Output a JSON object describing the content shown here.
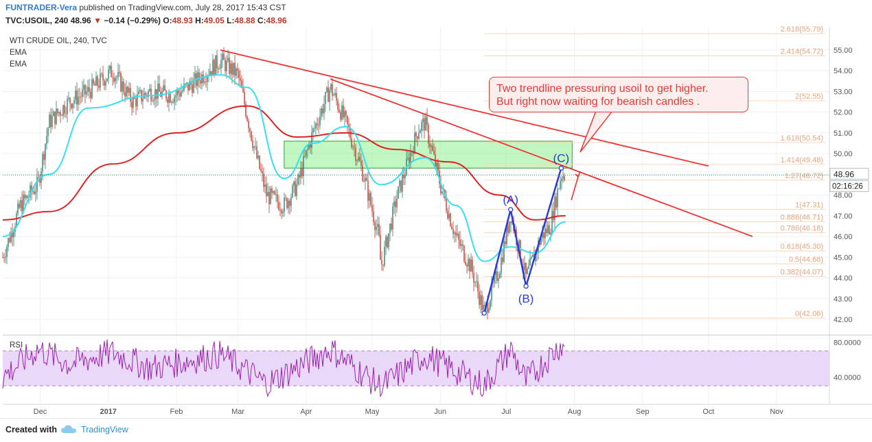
{
  "header": {
    "author": "FUNTRADER-Vera",
    "published": "published on TradingView.com, July 28, 2017 15:43 CST",
    "symbol": "TVC:USOIL, 240",
    "last": "48.96",
    "change": "−0.14 (−0.29%)",
    "o_label": "O:",
    "o_value": "48.93",
    "h_label": "H:",
    "h_value": "49.05",
    "l_label": "L:",
    "l_value": "48.88",
    "c_label": "C:",
    "c_value": "48.96"
  },
  "indicators": {
    "title": "WTI CRUDE OIL, 240, TVC",
    "ema1": "EMA",
    "ema2": "EMA",
    "rsi": "RSI"
  },
  "annotation": {
    "line1": "Two trendline pressuring usoil to get higher.",
    "line2": "But right now waiting for  bearish candles ."
  },
  "footer": {
    "created": "Created with",
    "brand": "TradingView"
  },
  "colors": {
    "up": "#2e7d6b",
    "down": "#c0392b",
    "ema_fast": "#33e0f0",
    "ema_slow": "#e02020",
    "trendline": "#f03030",
    "pattern": "#2a3cd8",
    "zone": "#90ee90",
    "rsi": "#9b1fb0",
    "rsi_band": "#ead8f8"
  },
  "chart_data": {
    "type": "candlestick",
    "price_axis": {
      "ticks": [
        "42.00",
        "43.00",
        "44.00",
        "45.00",
        "46.00",
        "47.00",
        "48.00",
        "49.00",
        "50.00",
        "51.00",
        "52.00",
        "53.00",
        "54.00",
        "55.00"
      ]
    },
    "time_axis": {
      "ticks": [
        "Dec",
        "2017",
        "Feb",
        "Mar",
        "Apr",
        "May",
        "Jun",
        "Jul",
        "Aug",
        "Sep",
        "Oct",
        "Nov"
      ]
    },
    "last_price": "48.96",
    "countdown": "02:16:26",
    "fib_levels": [
      {
        "label": "2.618(55.79)",
        "value": 55.79
      },
      {
        "label": "2.414(54.72)",
        "value": 54.72
      },
      {
        "label": "2(52.55)",
        "value": 52.55
      },
      {
        "label": "1.618(50.54)",
        "value": 50.54
      },
      {
        "label": "1.414(49.48)",
        "value": 49.48
      },
      {
        "label": "1.27(48.72)",
        "value": 48.72
      },
      {
        "label": "1(47.31)",
        "value": 47.31
      },
      {
        "label": "0.886(46.71)",
        "value": 46.71
      },
      {
        "label": "0.786(46.18)",
        "value": 46.18
      },
      {
        "label": "0.618(45.30)",
        "value": 45.3
      },
      {
        "label": "0.5(44.68)",
        "value": 44.68
      },
      {
        "label": "0.382(44.07)",
        "value": 44.07
      },
      {
        "label": "0(42.06)",
        "value": 42.06
      }
    ],
    "resistance_zone": {
      "from": "2017-03-22",
      "to": "2017-07-31",
      "low": 49.3,
      "high": 50.6
    },
    "trendlines": [
      {
        "name": "upper",
        "from": {
          "t": "2017-02-21",
          "p": 55.0
        },
        "to": {
          "t": "2017-10-01",
          "p": 49.4
        }
      },
      {
        "name": "lower",
        "from": {
          "t": "2017-04-12",
          "p": 53.6
        },
        "to": {
          "t": "2017-10-21",
          "p": 46.0
        }
      }
    ],
    "pattern": {
      "points": [
        {
          "label": "",
          "t": "2017-06-21",
          "p": 42.3
        },
        {
          "label": "(A)",
          "t": "2017-07-03",
          "p": 47.3
        },
        {
          "label": "(B)",
          "t": "2017-07-10",
          "p": 43.6
        },
        {
          "label": "(C)",
          "t": "2017-07-26",
          "p": 49.3
        }
      ]
    },
    "candles_overview": [
      {
        "t": "2016-11-14",
        "p": 45.0
      },
      {
        "t": "2016-11-22",
        "p": 47.5
      },
      {
        "t": "2016-11-30",
        "p": 48.5
      },
      {
        "t": "2016-12-05",
        "p": 51.5
      },
      {
        "t": "2016-12-14",
        "p": 52.5
      },
      {
        "t": "2016-12-23",
        "p": 53.0
      },
      {
        "t": "2017-01-03",
        "p": 54.0
      },
      {
        "t": "2017-01-12",
        "p": 52.5
      },
      {
        "t": "2017-01-20",
        "p": 53.0
      },
      {
        "t": "2017-01-31",
        "p": 52.8
      },
      {
        "t": "2017-02-10",
        "p": 53.5
      },
      {
        "t": "2017-02-21",
        "p": 54.5
      },
      {
        "t": "2017-03-01",
        "p": 53.8
      },
      {
        "t": "2017-03-09",
        "p": 50.0
      },
      {
        "t": "2017-03-14",
        "p": 48.0
      },
      {
        "t": "2017-03-22",
        "p": 47.5
      },
      {
        "t": "2017-03-28",
        "p": 48.5
      },
      {
        "t": "2017-04-04",
        "p": 51.0
      },
      {
        "t": "2017-04-12",
        "p": 53.2
      },
      {
        "t": "2017-04-19",
        "p": 51.5
      },
      {
        "t": "2017-04-27",
        "p": 49.0
      },
      {
        "t": "2017-05-04",
        "p": 46.0
      },
      {
        "t": "2017-05-05",
        "p": 44.5
      },
      {
        "t": "2017-05-12",
        "p": 47.8
      },
      {
        "t": "2017-05-22",
        "p": 51.2
      },
      {
        "t": "2017-05-25",
        "p": 51.5
      },
      {
        "t": "2017-06-01",
        "p": 48.5
      },
      {
        "t": "2017-06-08",
        "p": 46.0
      },
      {
        "t": "2017-06-15",
        "p": 44.5
      },
      {
        "t": "2017-06-21",
        "p": 42.3
      },
      {
        "t": "2017-06-28",
        "p": 44.5
      },
      {
        "t": "2017-07-03",
        "p": 47.1
      },
      {
        "t": "2017-07-10",
        "p": 44.0
      },
      {
        "t": "2017-07-17",
        "p": 46.0
      },
      {
        "t": "2017-07-21",
        "p": 46.5
      },
      {
        "t": "2017-07-26",
        "p": 49.0
      },
      {
        "t": "2017-07-28",
        "p": 48.96
      }
    ],
    "ema_fast_overview": [
      {
        "t": "2016-11-14",
        "p": 46.0
      },
      {
        "t": "2016-12-05",
        "p": 49.0
      },
      {
        "t": "2016-12-23",
        "p": 52.2
      },
      {
        "t": "2017-01-20",
        "p": 52.8
      },
      {
        "t": "2017-02-21",
        "p": 53.8
      },
      {
        "t": "2017-03-05",
        "p": 53.2
      },
      {
        "t": "2017-03-22",
        "p": 48.8
      },
      {
        "t": "2017-04-04",
        "p": 50.5
      },
      {
        "t": "2017-04-19",
        "p": 51.3
      },
      {
        "t": "2017-05-05",
        "p": 48.5
      },
      {
        "t": "2017-05-25",
        "p": 49.8
      },
      {
        "t": "2017-06-08",
        "p": 47.5
      },
      {
        "t": "2017-06-21",
        "p": 44.8
      },
      {
        "t": "2017-07-03",
        "p": 45.5
      },
      {
        "t": "2017-07-14",
        "p": 45.2
      },
      {
        "t": "2017-07-28",
        "p": 46.7
      }
    ],
    "ema_slow_overview": [
      {
        "t": "2016-11-14",
        "p": 46.8
      },
      {
        "t": "2016-12-05",
        "p": 47.2
      },
      {
        "t": "2017-01-03",
        "p": 49.5
      },
      {
        "t": "2017-02-01",
        "p": 51.0
      },
      {
        "t": "2017-03-05",
        "p": 52.3
      },
      {
        "t": "2017-03-28",
        "p": 50.8
      },
      {
        "t": "2017-04-19",
        "p": 51.0
      },
      {
        "t": "2017-05-12",
        "p": 50.2
      },
      {
        "t": "2017-06-05",
        "p": 49.6
      },
      {
        "t": "2017-06-28",
        "p": 48.0
      },
      {
        "t": "2017-07-14",
        "p": 46.8
      },
      {
        "t": "2017-07-28",
        "p": 47.0
      }
    ],
    "rsi": {
      "ticks": [
        "80.0000",
        "40.0000"
      ],
      "band": [
        30,
        70
      ],
      "overview": [
        {
          "t": "2016-11-14",
          "p": 40
        },
        {
          "t": "2016-11-30",
          "p": 72
        },
        {
          "t": "2016-12-14",
          "p": 55
        },
        {
          "t": "2017-01-03",
          "p": 68
        },
        {
          "t": "2017-01-20",
          "p": 50
        },
        {
          "t": "2017-02-21",
          "p": 66
        },
        {
          "t": "2017-03-14",
          "p": 32
        },
        {
          "t": "2017-04-12",
          "p": 72
        },
        {
          "t": "2017-05-05",
          "p": 28
        },
        {
          "t": "2017-05-25",
          "p": 65
        },
        {
          "t": "2017-06-21",
          "p": 30
        },
        {
          "t": "2017-07-03",
          "p": 72
        },
        {
          "t": "2017-07-10",
          "p": 35
        },
        {
          "t": "2017-07-26",
          "p": 78
        },
        {
          "t": "2017-07-28",
          "p": 68
        }
      ]
    }
  }
}
